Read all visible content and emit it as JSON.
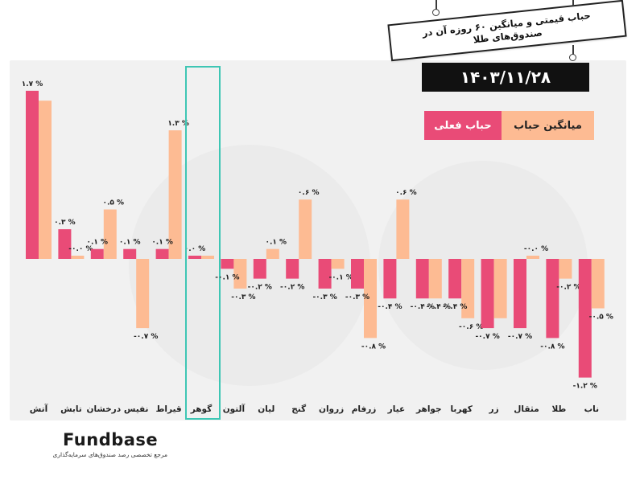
{
  "header": {
    "title": "حباب قیمتی و میانگین ۶۰ روزه آن در صندوق‌های طلا",
    "date": "۱۴۰۳/۱۱/۲۸"
  },
  "legend": {
    "actual_bubble": "حباب فعلی",
    "average_bubble": "میانگین حباب"
  },
  "logo": {
    "name": "Fundbase",
    "tagline": "مرجع تخصصی رصد صندوق‌های سرمایه‌گذاری"
  },
  "colors": {
    "actual": "#e94b77",
    "average": "#fdbb93",
    "highlight": "#3ec6b4"
  },
  "chart_data": {
    "type": "bar",
    "unit": "%",
    "highlighted_category": "گوهر",
    "categories": [
      "آتش",
      "تابش",
      "درخشان",
      "نفیس",
      "قیراط",
      "گوهر",
      "آلتون",
      "لیان",
      "گنج",
      "زروان",
      "زرفام",
      "عیار",
      "جواهر",
      "کهربا",
      "زر",
      "مثقال",
      "طلا",
      "ناب"
    ],
    "series": [
      {
        "name": "حباب فعلی",
        "values": [
          1.7,
          0.3,
          0.1,
          0.1,
          0.1,
          0.0,
          -0.1,
          -0.2,
          -0.2,
          -0.3,
          -0.3,
          -0.4,
          -0.4,
          -0.4,
          -0.7,
          -0.7,
          -0.8,
          -1.2
        ],
        "labels": [
          "۱.۷ %",
          "۰.۳ %",
          "۰.۱ %",
          "۰.۱ %",
          "۰.۱ %",
          "۰.۰ %",
          "-۰.۱ %",
          "-۰.۲ %",
          "-۰.۲ %",
          "-۰.۳ %",
          "-۰.۳ %",
          "-۰.۴ %",
          "-۰.۴ %",
          "-۰.۴ %",
          "-۰.۷ %",
          "-۰.۷ %",
          "-۰.۸ %",
          "-۱.۲ %"
        ]
      },
      {
        "name": "میانگین حباب",
        "values": [
          1.6,
          0.0,
          0.5,
          -0.7,
          1.3,
          0.0,
          -0.3,
          0.1,
          0.6,
          -0.1,
          -0.8,
          0.6,
          -0.4,
          -0.6,
          -0.6,
          -0.0,
          -0.2,
          -0.5
        ],
        "labels": [
          "",
          "-۰.۰ %",
          "۰.۵ %",
          "-۰.۷ %",
          "۱.۳ %",
          "",
          "-۰.۳ %",
          "۰.۱ %",
          "۰.۶ %",
          "-۰.۱ %",
          "-۰.۸ %",
          "۰.۶ %",
          "-۰.۴ %",
          "-۰.۶ %",
          "",
          "-۰.۰ %",
          "-۰.۲ %",
          "-۰.۵ %"
        ]
      }
    ],
    "ylim": [
      -1.3,
      1.8
    ]
  }
}
